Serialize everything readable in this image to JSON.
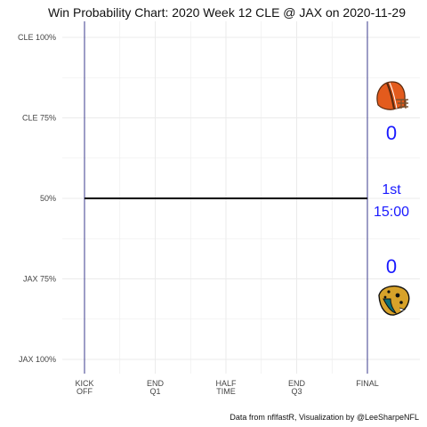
{
  "chart_data": {
    "type": "line",
    "title": "Win Probability Chart: 2020 Week 12 CLE @ JAX on 2020-11-29",
    "caption": "Data from nflfastR, Visualization by @LeeSharpeNFL",
    "y_tick_labels": [
      "CLE 100%",
      "CLE 75%",
      "50%",
      "JAX 75%",
      "JAX 100%"
    ],
    "x_tick_labels": [
      {
        "line1": "KICK",
        "line2": "OFF"
      },
      {
        "line1": "END",
        "line2": "Q1"
      },
      {
        "line1": "HALF",
        "line2": "TIME"
      },
      {
        "line1": "END",
        "line2": "Q3"
      },
      {
        "line1": "FINAL",
        "line2": ""
      }
    ],
    "xlim": [
      0,
      3600
    ],
    "ylim": [
      -1,
      1
    ],
    "series": [
      {
        "x": [
          0,
          3600
        ],
        "y": [
          0,
          0
        ]
      }
    ],
    "grid": true,
    "top_team": {
      "logo": "cleveland-browns-helmet",
      "score": "0"
    },
    "bottom_team": {
      "logo": "jacksonville-jaguars-head",
      "score": "0"
    },
    "game_status": {
      "quarter": "1st",
      "clock": "15:00"
    },
    "colors": {
      "line": "#000000",
      "kickoff_final_lines": "#3b3b8c",
      "grid": "#ebebeb",
      "annotation": "#1a1aff",
      "cle_orange": "#e35b1d",
      "cle_brown": "#5a2a0f",
      "jax_teal": "#0c6f78",
      "jax_gold": "#d7a22a"
    }
  }
}
